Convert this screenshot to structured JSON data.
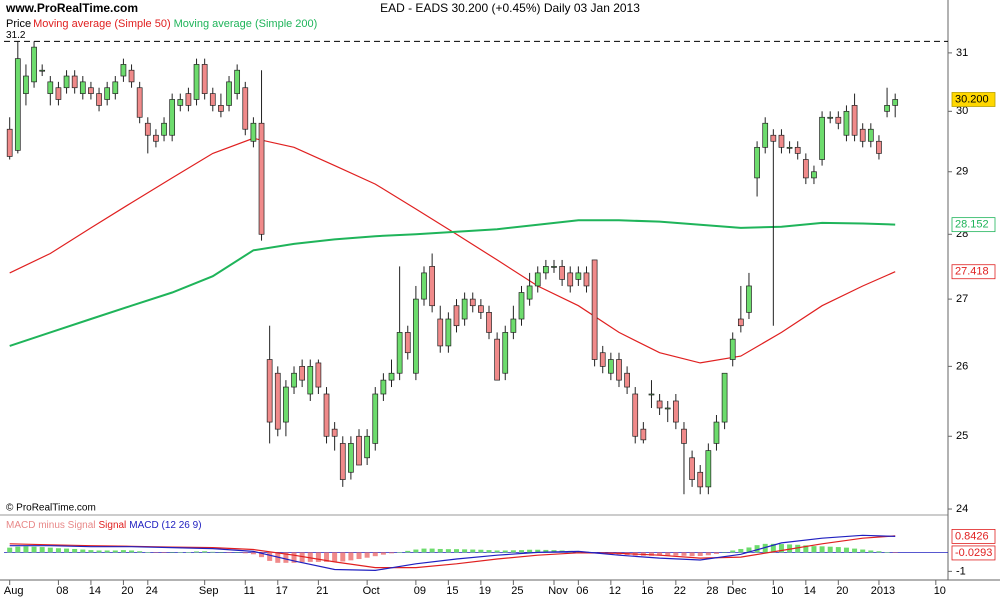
{
  "chart_data": [
    {
      "type": "candlestick",
      "site": "www.ProRealTime.com",
      "title": "EAD - EADS    30.200 (+0.45%)    Daily  03 Jan 2013",
      "price_label": "Price",
      "copyright": "© ProRealTime.com",
      "log_y": true,
      "ylim": [
        23.96,
        31.26
      ],
      "yticks": [
        24,
        25,
        26,
        27,
        28,
        29,
        30,
        31
      ],
      "xlim": [
        -0.7,
        115.5
      ],
      "xticks": [
        {
          "value": 0,
          "label": "Aug"
        },
        {
          "value": 6,
          "label": "08"
        },
        {
          "value": 10,
          "label": "14"
        },
        {
          "value": 14,
          "label": "20"
        },
        {
          "value": 17,
          "label": "24"
        },
        {
          "value": 24,
          "label": "Sep"
        },
        {
          "value": 29,
          "label": "11"
        },
        {
          "value": 33,
          "label": "17"
        },
        {
          "value": 38,
          "label": "21"
        },
        {
          "value": 44,
          "label": "Oct"
        },
        {
          "value": 50,
          "label": "09"
        },
        {
          "value": 54,
          "label": "15"
        },
        {
          "value": 58,
          "label": "19"
        },
        {
          "value": 62,
          "label": "25"
        },
        {
          "value": 67,
          "label": "Nov"
        },
        {
          "value": 70,
          "label": "06"
        },
        {
          "value": 74,
          "label": "12"
        },
        {
          "value": 78,
          "label": "16"
        },
        {
          "value": 82,
          "label": "22"
        },
        {
          "value": 86,
          "label": "28"
        },
        {
          "value": 89,
          "label": "Dec"
        },
        {
          "value": 94,
          "label": "10"
        },
        {
          "value": 98,
          "label": "14"
        },
        {
          "value": 102,
          "label": "20"
        },
        {
          "value": 107,
          "label": "2013"
        },
        {
          "value": 114,
          "label": "10"
        }
      ],
      "up_color": "#6ddc6d",
      "down_color": "#f08a8a",
      "x": [
        0,
        1,
        2,
        3,
        4,
        5,
        6,
        7,
        8,
        9,
        10,
        11,
        12,
        13,
        14,
        15,
        16,
        17,
        18,
        19,
        20,
        21,
        22,
        23,
        24,
        25,
        26,
        27,
        28,
        29,
        30,
        31,
        32,
        33,
        34,
        35,
        36,
        37,
        38,
        39,
        40,
        41,
        42,
        43,
        44,
        45,
        46,
        47,
        48,
        49,
        50,
        51,
        52,
        53,
        54,
        55,
        56,
        57,
        58,
        59,
        60,
        61,
        62,
        63,
        64,
        65,
        66,
        67,
        68,
        69,
        70,
        71,
        72,
        73,
        74,
        75,
        76,
        77,
        78,
        79,
        80,
        81,
        82,
        83,
        84,
        85,
        86,
        87,
        88,
        89,
        90,
        91,
        92,
        93,
        94,
        95,
        96,
        97,
        98,
        99,
        100,
        101,
        102,
        103,
        104,
        105,
        106,
        107,
        108,
        109
      ],
      "open": [
        29.7,
        29.35,
        30.3,
        30.5,
        30.7,
        30.3,
        30.4,
        30.4,
        30.6,
        30.3,
        30.4,
        30.3,
        30.2,
        30.3,
        30.6,
        30.7,
        30.4,
        29.8,
        29.6,
        29.6,
        29.6,
        30.1,
        30.3,
        30.2,
        30.8,
        30.3,
        30.1,
        30.1,
        30.3,
        30.4,
        29.5,
        29.8,
        26.1,
        25.9,
        25.2,
        25.7,
        26.0,
        25.6,
        26.05,
        25.6,
        25.1,
        24.9,
        24.5,
        25.0,
        24.7,
        24.9,
        25.6,
        25.8,
        25.9,
        26.5,
        25.9,
        27.0,
        27.5,
        26.7,
        26.3,
        26.9,
        26.7,
        27.0,
        26.9,
        26.8,
        26.4,
        25.9,
        26.5,
        26.7,
        27.0,
        27.2,
        27.4,
        27.5,
        27.5,
        27.4,
        27.3,
        27.4,
        27.6,
        26.2,
        25.9,
        26.1,
        25.9,
        25.6,
        25.1,
        25.6,
        25.5,
        25.4,
        25.5,
        25.1,
        24.7,
        24.5,
        24.3,
        24.9,
        25.2,
        26.1,
        26.7,
        26.8,
        28.9,
        29.4,
        29.6,
        29.6,
        29.4,
        29.4,
        29.2,
        28.9,
        29.2,
        29.9,
        29.9,
        29.6,
        30.1,
        29.7,
        29.5,
        29.5,
        30.0,
        30.1
      ],
      "high": [
        29.9,
        31.2,
        30.8,
        31.2,
        30.8,
        30.6,
        30.5,
        30.7,
        30.7,
        30.6,
        30.5,
        30.4,
        30.5,
        30.6,
        30.9,
        30.8,
        30.5,
        29.9,
        29.7,
        29.9,
        30.3,
        30.3,
        30.4,
        30.9,
        30.9,
        30.4,
        30.3,
        30.6,
        30.8,
        30.5,
        29.9,
        30.7,
        26.6,
        26.0,
        25.8,
        26.0,
        26.1,
        26.1,
        26.1,
        25.7,
        25.2,
        25.0,
        25.0,
        25.1,
        25.1,
        25.7,
        25.9,
        26.1,
        27.5,
        26.6,
        27.2,
        27.5,
        27.7,
        26.9,
        26.8,
        27.0,
        27.1,
        27.1,
        27.0,
        26.9,
        26.5,
        26.6,
        26.9,
        27.2,
        27.4,
        27.5,
        27.6,
        27.6,
        27.6,
        27.5,
        27.5,
        27.5,
        27.6,
        26.3,
        26.2,
        26.2,
        26.0,
        25.7,
        25.2,
        25.8,
        25.6,
        25.5,
        25.6,
        25.2,
        24.8,
        24.6,
        24.9,
        25.3,
        25.9,
        26.5,
        27.2,
        27.4,
        29.5,
        29.9,
        29.7,
        29.7,
        29.5,
        29.5,
        29.3,
        29.1,
        30.0,
        30.0,
        30.0,
        30.1,
        30.3,
        29.8,
        29.8,
        29.6,
        30.4,
        30.3
      ],
      "low": [
        29.2,
        29.3,
        30.1,
        30.4,
        30.6,
        30.1,
        30.1,
        30.3,
        30.3,
        30.2,
        30.2,
        30.0,
        30.1,
        30.2,
        30.5,
        30.4,
        29.8,
        29.3,
        29.4,
        29.5,
        29.5,
        30.0,
        30.0,
        30.1,
        30.2,
        30.0,
        29.9,
        30.0,
        30.2,
        29.6,
        29.4,
        27.9,
        24.9,
        25.0,
        25.0,
        25.6,
        25.7,
        25.5,
        25.6,
        24.9,
        24.8,
        24.3,
        24.4,
        24.6,
        24.6,
        24.8,
        25.5,
        25.7,
        25.8,
        26.1,
        25.8,
        26.9,
        26.8,
        26.2,
        26.2,
        26.5,
        26.6,
        26.8,
        26.7,
        26.4,
        25.8,
        25.8,
        26.4,
        26.6,
        26.9,
        27.1,
        27.3,
        27.4,
        27.2,
        27.1,
        27.2,
        27.1,
        26.0,
        25.9,
        25.8,
        25.7,
        25.6,
        24.9,
        24.9,
        25.4,
        25.3,
        25.2,
        25.1,
        24.2,
        24.3,
        24.2,
        24.2,
        24.8,
        25.1,
        26.0,
        26.5,
        26.7,
        28.6,
        29.3,
        26.6,
        29.3,
        29.3,
        29.2,
        28.8,
        28.8,
        29.1,
        29.8,
        29.7,
        29.5,
        29.5,
        29.4,
        29.4,
        29.2,
        29.9,
        29.9
      ],
      "close": [
        29.25,
        30.9,
        30.6,
        31.1,
        30.7,
        30.5,
        30.2,
        30.6,
        30.4,
        30.5,
        30.3,
        30.1,
        30.4,
        30.5,
        30.8,
        30.5,
        29.9,
        29.6,
        29.5,
        29.8,
        30.2,
        30.2,
        30.1,
        30.8,
        30.3,
        30.1,
        30.0,
        30.5,
        30.7,
        29.7,
        29.8,
        28.0,
        25.2,
        25.1,
        25.7,
        25.9,
        25.8,
        26.0,
        25.7,
        25.0,
        25.0,
        24.4,
        24.9,
        24.6,
        25.0,
        25.6,
        25.8,
        25.9,
        26.5,
        26.2,
        27.0,
        27.4,
        26.9,
        26.3,
        26.7,
        26.6,
        27.0,
        26.9,
        26.8,
        26.5,
        25.8,
        26.5,
        26.7,
        27.1,
        27.2,
        27.4,
        27.5,
        27.5,
        27.3,
        27.2,
        27.4,
        27.2,
        26.1,
        26.0,
        26.1,
        25.8,
        25.7,
        25.0,
        24.95,
        25.6,
        25.4,
        25.4,
        25.2,
        24.9,
        24.4,
        24.3,
        24.8,
        25.2,
        25.9,
        26.4,
        26.6,
        27.2,
        29.4,
        29.8,
        29.5,
        29.4,
        29.4,
        29.3,
        28.9,
        29.0,
        29.9,
        29.9,
        29.8,
        30.0,
        29.6,
        29.5,
        29.7,
        29.3,
        30.1,
        30.2
      ],
      "series": [
        {
          "name": "Moving average (Simple 50)",
          "color": "#e02020",
          "x": [
            0,
            5,
            10,
            15,
            20,
            25,
            30,
            35,
            40,
            45,
            50,
            55,
            60,
            65,
            70,
            75,
            80,
            85,
            90,
            95,
            100,
            105,
            109
          ],
          "values": [
            27.4,
            27.7,
            28.1,
            28.5,
            28.9,
            29.3,
            29.55,
            29.4,
            29.1,
            28.8,
            28.4,
            28.0,
            27.6,
            27.2,
            26.9,
            26.5,
            26.2,
            26.05,
            26.15,
            26.5,
            26.9,
            27.2,
            27.418
          ]
        },
        {
          "name": "Moving average (Simple 200)",
          "color": "#1fb45a",
          "x": [
            0,
            5,
            10,
            15,
            20,
            25,
            30,
            35,
            40,
            45,
            50,
            55,
            60,
            65,
            70,
            75,
            80,
            85,
            90,
            95,
            100,
            105,
            109
          ],
          "values": [
            26.3,
            26.5,
            26.7,
            26.9,
            27.1,
            27.35,
            27.75,
            27.85,
            27.92,
            27.97,
            28.0,
            28.04,
            28.08,
            28.15,
            28.22,
            28.22,
            28.2,
            28.15,
            28.1,
            28.12,
            28.18,
            28.17,
            28.152
          ]
        }
      ],
      "value_tags": [
        {
          "value": 30.2,
          "label": "30.200",
          "color": "#000000",
          "background": "#ffd700"
        },
        {
          "value": 28.152,
          "label": "28.152",
          "color": "#1fb45a",
          "background": "#ffffff"
        },
        {
          "value": 27.418,
          "label": "27.418",
          "color": "#e02020",
          "background": "#ffffff"
        }
      ],
      "reference_line": {
        "value": 31.2,
        "label": "31.2"
      }
    },
    {
      "type": "macd",
      "ylim": [
        -1.35,
        1.18
      ],
      "yticks": [
        -1
      ],
      "pos_color": "#6ddc6d",
      "neg_color": "#f08a8a",
      "series": [
        {
          "name": "MACD minus Signal",
          "color": "#e88888",
          "values": [
            0.25,
            0.3,
            0.32,
            0.3,
            0.28,
            0.25,
            0.22,
            0.2,
            0.18,
            0.15,
            0.12,
            0.1,
            0.1,
            0.1,
            0.12,
            0.1,
            0.06,
            0.02,
            -0.02,
            -0.03,
            0.0,
            0.02,
            0.02,
            0.05,
            0.06,
            0.03,
            0.0,
            -0.02,
            0.0,
            -0.05,
            -0.1,
            -0.25,
            -0.45,
            -0.55,
            -0.55,
            -0.55,
            -0.52,
            -0.5,
            -0.5,
            -0.5,
            -0.5,
            -0.48,
            -0.42,
            -0.35,
            -0.28,
            -0.2,
            -0.12,
            -0.05,
            0.02,
            0.08,
            0.15,
            0.2,
            0.2,
            0.18,
            0.17,
            0.17,
            0.16,
            0.15,
            0.14,
            0.12,
            0.1,
            0.1,
            0.11,
            0.12,
            0.14,
            0.14,
            0.13,
            0.12,
            0.1,
            0.08,
            0.06,
            0.03,
            -0.03,
            -0.08,
            -0.1,
            -0.12,
            -0.14,
            -0.17,
            -0.18,
            -0.18,
            -0.17,
            -0.16,
            -0.17,
            -0.18,
            -0.2,
            -0.19,
            -0.15,
            -0.08,
            0.0,
            0.1,
            0.18,
            0.26,
            0.38,
            0.45,
            0.45,
            0.44,
            0.42,
            0.4,
            0.37,
            0.33,
            0.32,
            0.3,
            0.28,
            0.25,
            0.2,
            0.15,
            0.1,
            0.06,
            0.02,
            -0.0293
          ]
        },
        {
          "name": "Signal",
          "color": "#e02020",
          "x": [
            0,
            5,
            10,
            15,
            20,
            25,
            30,
            35,
            40,
            45,
            50,
            55,
            60,
            65,
            70,
            75,
            80,
            85,
            90,
            95,
            100,
            105,
            109
          ],
          "values": [
            0.45,
            0.4,
            0.35,
            0.32,
            0.28,
            0.25,
            0.15,
            -0.15,
            -0.5,
            -0.8,
            -0.8,
            -0.6,
            -0.35,
            -0.15,
            -0.02,
            -0.05,
            -0.15,
            -0.3,
            -0.25,
            0.1,
            0.45,
            0.75,
            0.87
          ]
        },
        {
          "name": "MACD (12 26 9)",
          "color": "#2020c0",
          "x": [
            0,
            5,
            10,
            15,
            20,
            25,
            30,
            35,
            40,
            45,
            50,
            55,
            60,
            65,
            70,
            75,
            80,
            85,
            90,
            95,
            100,
            105,
            109
          ],
          "values": [
            0.35,
            0.35,
            0.3,
            0.3,
            0.25,
            0.2,
            0.05,
            -0.45,
            -0.9,
            -0.95,
            -0.6,
            -0.35,
            -0.15,
            0.0,
            0.05,
            -0.15,
            -0.3,
            -0.4,
            -0.1,
            0.5,
            0.75,
            0.9,
            0.8426
          ]
        }
      ],
      "value_tags": [
        {
          "value": 0.8426,
          "label": "0.8426",
          "color": "#e02020",
          "background": "#ffffff"
        },
        {
          "value": -0.0293,
          "label": "-0.0293",
          "color": "#e02020",
          "background": "#ffffff"
        }
      ]
    }
  ]
}
